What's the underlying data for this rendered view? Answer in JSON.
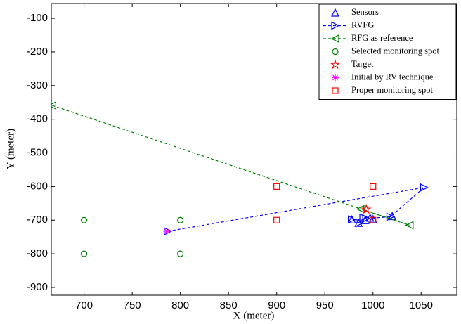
{
  "chart_data": {
    "type": "scatter",
    "xlabel": "X (meter)",
    "ylabel": "Y (meter)",
    "xlim": [
      666,
      1087
    ],
    "ylim": [
      -923,
      -56
    ],
    "xticks": [
      700,
      750,
      800,
      850,
      900,
      950,
      1000,
      1050
    ],
    "yticks": [
      -100,
      -200,
      -300,
      -400,
      -500,
      -600,
      -700,
      -800,
      -900
    ],
    "legend": "upper right",
    "series": [
      {
        "name": "Sensors",
        "color": "#0000ff",
        "marker": "triangle-up",
        "line": "none",
        "x": [
          978,
          985,
          992,
          997,
          1020,
          1000
        ],
        "y": [
          -698,
          -708,
          -700,
          -693,
          -688,
          -697
        ]
      },
      {
        "name": "RVFG",
        "color": "#0000ff",
        "marker": "triangle-right",
        "line": "dashed",
        "x": [
          787,
          1053,
          1018,
          978,
          986,
          993,
          990
        ],
        "y": [
          -733,
          -603,
          -690,
          -698,
          -708,
          -695,
          -692
        ]
      },
      {
        "name": "RFG as reference",
        "color": "#008000",
        "marker": "triangle-left",
        "line": "dashed",
        "x": [
          667,
          1038,
          987
        ],
        "y": [
          -359,
          -715,
          -667
        ]
      },
      {
        "name": "Selected monitoring spot",
        "color": "#008000",
        "marker": "circle",
        "line": "none",
        "x": [
          700,
          700,
          800,
          800
        ],
        "y": [
          -700,
          -800,
          -700,
          -800
        ]
      },
      {
        "name": "Target",
        "color": "#ff0000",
        "marker": "star",
        "line": "none",
        "x": [
          993
        ],
        "y": [
          -668
        ]
      },
      {
        "name": "Initial by RV technique",
        "color": "#ff00ff",
        "marker": "asterisk",
        "line": "none",
        "x": [
          786
        ],
        "y": [
          -733
        ]
      },
      {
        "name": "Proper monitoring spot",
        "color": "#ff0000",
        "marker": "square",
        "line": "none",
        "x": [
          900,
          900,
          1000,
          1000
        ],
        "y": [
          -600,
          -700,
          -600,
          -700
        ]
      }
    ]
  }
}
